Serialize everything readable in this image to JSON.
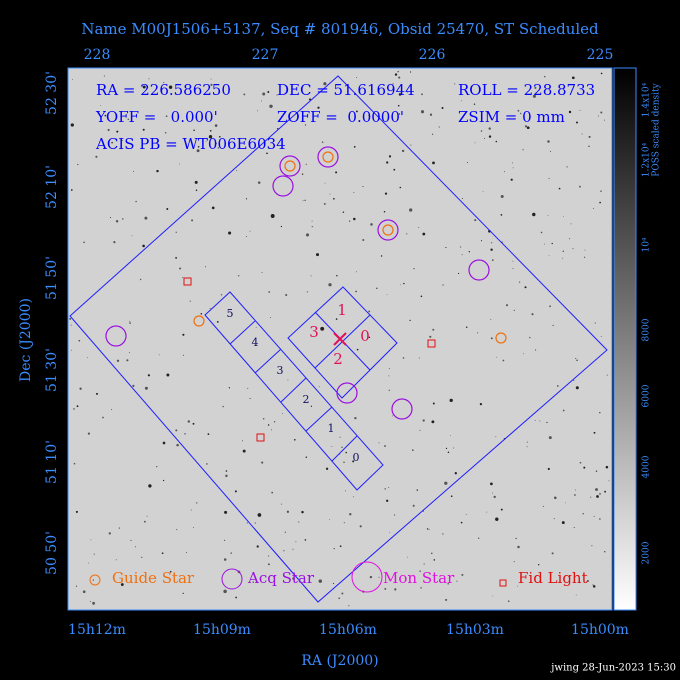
{
  "title": "Name M00J1506+5137, Seq # 801946, Obsid 25470, ST Scheduled",
  "top_axis": {
    "labels": [
      "228",
      "227",
      "226",
      "225"
    ]
  },
  "left_axis": {
    "title": "Dec (J2000)",
    "labels": [
      "52 30'",
      "52 10'",
      "51 50'",
      "51 30'",
      "51 10'",
      "50 50'"
    ]
  },
  "bottom_axis": {
    "title": "RA (J2000)",
    "labels": [
      "15h12m",
      "15h09m",
      "15h06m",
      "15h03m",
      "15h00m"
    ]
  },
  "info": {
    "ra": "RA = 226.586250",
    "dec": "DEC = 51.616944",
    "roll": "ROLL = 228.8733",
    "yoff": "YOFF =   0.000'",
    "zoff": "ZOFF =  0.0000'",
    "zsim": "ZSIM = 0 mm",
    "acis": "ACIS PB = WT006E6034"
  },
  "acis_i_chips": [
    "0",
    "1",
    "2",
    "3"
  ],
  "acis_s_chips": [
    "0",
    "1",
    "2",
    "3",
    "4",
    "5"
  ],
  "legend": [
    "Guide Star",
    "Acq Star",
    "Mon Star",
    "Fid Light"
  ],
  "colorbar": {
    "title": "POSS scaled density",
    "labels": [
      "2000",
      "4000",
      "6000",
      "8000",
      "10⁴",
      "1.2x10⁴",
      "1.4x10⁴"
    ]
  },
  "footer": "jwing 28-Jun-2023 15:30"
}
